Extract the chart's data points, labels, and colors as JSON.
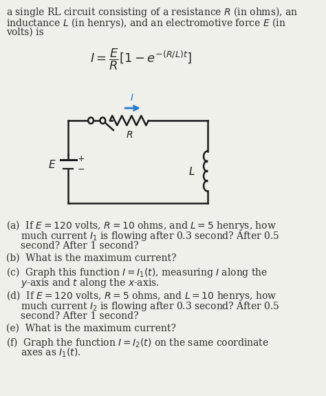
{
  "bg_color": "#f0f0eb",
  "text_color": "#2a2a2a",
  "title_lines": [
    "a single RL circuit consisting of a resistance $R$ (in ohms), an",
    "inductance $L$ (in henrys), and an electromotive force $E$ (in",
    "volts) is"
  ],
  "formula": "$I = \\dfrac{E}{R}[1 - e^{-(R/L)t}]$",
  "parts": [
    [
      "(a)",
      "If $E = 120$ volts, $R = 10$ ohms, and $L = 5$ henrys, how",
      "much current $I_1$ is flowing after 0.3 second? After 0.5",
      "second? After 1 second?"
    ],
    [
      "(b)",
      "What is the maximum current?"
    ],
    [
      "(c)",
      "Graph this function $I = I_1(t)$, measuring $I$ along the",
      "$y$-axis and $t$ along the $x$-axis."
    ],
    [
      "(d)",
      "If $E = 120$ volts, $R = 5$ ohms, and $L = 10$ henrys, how",
      "much current $I_2$ is flowing after 0.3 second? After 0.5",
      "second? After 1 second?"
    ],
    [
      "(e)",
      "What is the maximum current?"
    ],
    [
      "(f)",
      "Graph the function $I = I_2(t)$ on the same coordinate",
      "axes as $I_1(t)$."
    ]
  ],
  "circuit_color": "#1a1a1a",
  "arrow_color": "#2277cc",
  "cl": 115,
  "cr": 350,
  "ct": 175,
  "cb": 295,
  "figw": 4.74,
  "figh": 5.75,
  "dpi": 100
}
